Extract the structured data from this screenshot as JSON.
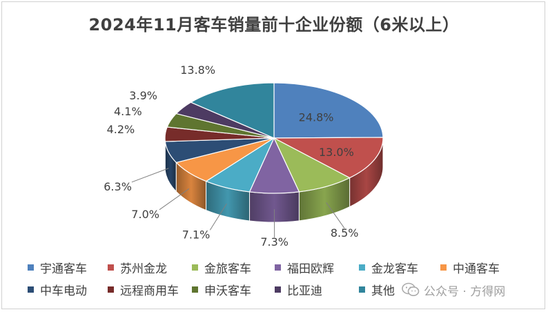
{
  "chart_data": {
    "type": "pie",
    "title": "2024年11月客车销量前十企业份额（6米以上）",
    "unit": "%",
    "slices": [
      {
        "name": "宇通客车",
        "value": 24.8,
        "label": "24.8%",
        "color": "#4f81bd"
      },
      {
        "name": "苏州金龙",
        "value": 13.0,
        "label": "13.0%",
        "color": "#c0504d"
      },
      {
        "name": "金旅客车",
        "value": 8.5,
        "label": "8.5%",
        "color": "#9bbb59"
      },
      {
        "name": "福田欧辉",
        "value": 7.3,
        "label": "7.3%",
        "color": "#8064a2"
      },
      {
        "name": "金龙客车",
        "value": 7.1,
        "label": "7.1%",
        "color": "#4bacc6"
      },
      {
        "name": "中通客车",
        "value": 7.0,
        "label": "7.0%",
        "color": "#f79646"
      },
      {
        "name": "中车电动",
        "value": 6.3,
        "label": "6.3%",
        "color": "#2c4d75"
      },
      {
        "name": "远程商用车",
        "value": 4.2,
        "label": "4.2%",
        "color": "#772c2a"
      },
      {
        "name": "申沃客车",
        "value": 4.1,
        "label": "4.1%",
        "color": "#5f7530"
      },
      {
        "name": "比亚迪",
        "value": 3.9,
        "label": "3.9%",
        "color": "#4d3b62"
      },
      {
        "name": "其他",
        "value": 13.8,
        "label": "13.8%",
        "color": "#31859c"
      }
    ],
    "legend_position": "bottom"
  },
  "watermark": {
    "text": "公众号 · 方得网",
    "icon": "wechat-icon"
  }
}
